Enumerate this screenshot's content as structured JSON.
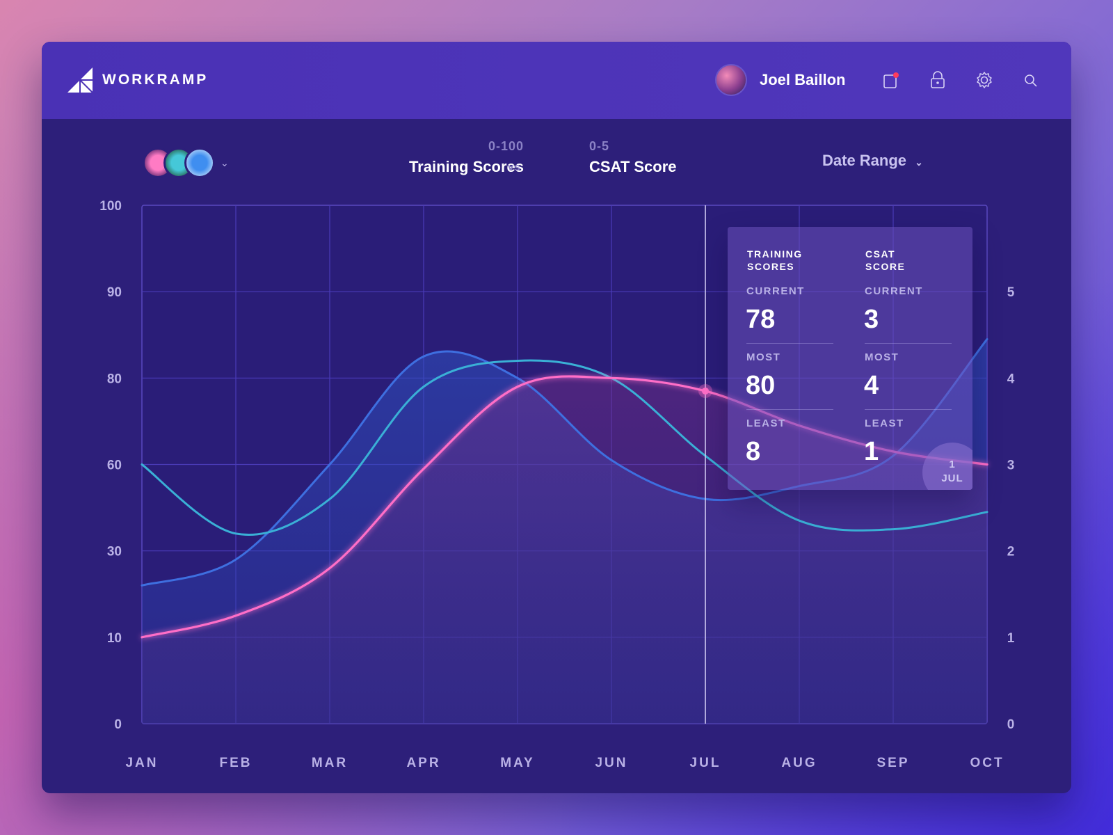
{
  "app": {
    "brand": "WORKRAMP",
    "user_name": "Joel Baillon"
  },
  "icons": {
    "notifications": "tablet-notification-icon",
    "lock": "lock-icon",
    "settings": "gear-icon",
    "search": "search-icon",
    "dropdown": "chevron-down-icon"
  },
  "header": {
    "series_a": {
      "range": "0-100",
      "name": "Training Scores"
    },
    "vs": "vs",
    "series_b": {
      "range": "0-5",
      "name": "CSAT Score"
    },
    "date_range": "Date Range"
  },
  "tooltip": {
    "date_day": "1",
    "date_month": "JUL",
    "training": {
      "head_line1": "TRAINING",
      "head_line2": "SCORES",
      "current_label": "CURRENT",
      "current": "78",
      "most_label": "MOST",
      "most": "80",
      "least_label": "LEAST",
      "least": "8"
    },
    "csat": {
      "head_line1": "CSAT",
      "head_line2": "SCORE",
      "current_label": "CURRENT",
      "current": "3",
      "most_label": "MOST",
      "most": "4",
      "least_label": "LEAST",
      "least": "1"
    }
  },
  "colors": {
    "accent_pink": "#ff6ec7",
    "accent_cyan": "#3ab0d6",
    "accent_blue": "#3e6fe0",
    "card_bg": "#2d1f7a",
    "topbar_bg": "#4a31b5",
    "notification_dot": "#ff3b5c"
  },
  "chart_data": {
    "type": "line",
    "categories": [
      "JAN",
      "FEB",
      "MAR",
      "APR",
      "MAY",
      "JUN",
      "JUL",
      "AUG",
      "SEP",
      "OCT"
    ],
    "y_left_ticks": [
      "0",
      "10",
      "30",
      "60",
      "80",
      "90",
      "100"
    ],
    "y_right_ticks": [
      "0",
      "1",
      "2",
      "3",
      "4",
      "5"
    ],
    "x_index_range": [
      0,
      9
    ],
    "series": [
      {
        "key": "pink",
        "values": [
          1.0,
          1.25,
          1.8,
          2.95,
          3.9,
          4.0,
          3.85,
          3.45,
          3.15,
          3.0
        ]
      },
      {
        "key": "cyan",
        "values": [
          3.0,
          2.2,
          2.6,
          3.9,
          4.2,
          4.0,
          3.1,
          2.35,
          2.25,
          2.45
        ]
      },
      {
        "key": "blue",
        "values": [
          1.6,
          1.9,
          3.0,
          4.25,
          4.0,
          3.05,
          2.6,
          2.75,
          3.1,
          4.45
        ]
      }
    ],
    "highlight_index": 6,
    "grid": true
  }
}
